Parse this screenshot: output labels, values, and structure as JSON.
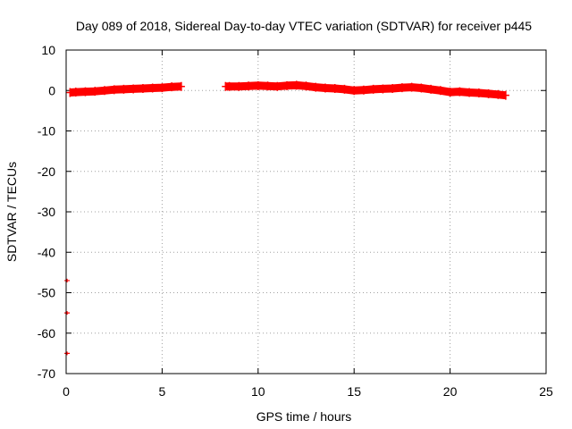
{
  "chart_data": {
    "type": "scatter",
    "title": "Day 089 of 2018, Sidereal Day-to-day VTEC variation (SDTVAR) for receiver p445",
    "xlabel": "GPS time / hours",
    "ylabel": "SDTVAR / TECUs",
    "xlim": [
      0,
      25
    ],
    "ylim": [
      -70,
      10
    ],
    "xticks": [
      0,
      5,
      10,
      15,
      20,
      25
    ],
    "yticks": [
      10,
      0,
      -10,
      -20,
      -30,
      -40,
      -50,
      -60,
      -70
    ],
    "grid": true,
    "legend": "none",
    "marker_color": "#ff0000",
    "series": [
      {
        "segments": [
          {
            "x": [
              0.2,
              0.5,
              1.0,
              1.5,
              2.0,
              2.5,
              3.0,
              3.5,
              4.0,
              4.5,
              5.0,
              5.5,
              6.0
            ],
            "y": [
              -0.5,
              -0.4,
              -0.3,
              -0.2,
              0.0,
              0.2,
              0.3,
              0.4,
              0.5,
              0.6,
              0.7,
              0.9,
              1.0
            ]
          },
          {
            "x": [
              8.3,
              8.5,
              9.0,
              9.5,
              10.0,
              10.5,
              11.0,
              11.5,
              12.0,
              12.5,
              13.0,
              13.5,
              14.0,
              14.5,
              15.0,
              15.5,
              16.0,
              16.5,
              17.0,
              17.5,
              18.0,
              18.5,
              19.0,
              19.5,
              20.0,
              20.5,
              21.0,
              21.5,
              22.0,
              22.5,
              22.9
            ],
            "y": [
              1.0,
              1.0,
              1.0,
              1.1,
              1.2,
              1.1,
              1.0,
              1.2,
              1.3,
              1.1,
              0.8,
              0.6,
              0.5,
              0.3,
              0.0,
              0.1,
              0.3,
              0.4,
              0.5,
              0.7,
              0.8,
              0.6,
              0.3,
              0.0,
              -0.4,
              -0.3,
              -0.5,
              -0.6,
              -0.8,
              -1.0,
              -1.2
            ]
          }
        ]
      },
      {
        "outliers": [
          {
            "x": 0.05,
            "y": -47.0
          },
          {
            "x": 0.05,
            "y": -55.0
          },
          {
            "x": 0.05,
            "y": -65.0
          }
        ]
      }
    ]
  }
}
